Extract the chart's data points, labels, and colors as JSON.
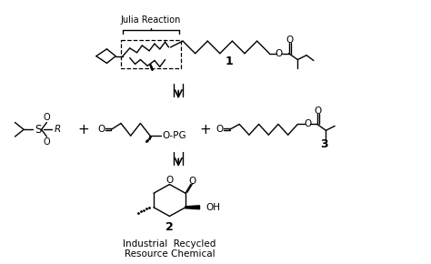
{
  "background_color": "#ffffff",
  "text_color": "#000000",
  "julia_reaction_label": "Julia Reaction",
  "compound1_label": "1",
  "compound2_label": "2",
  "compound3_label": "3",
  "label_industrial": "Industrial  Recycled\nResource Chemical",
  "label_OPG": "O-PG",
  "label_R": "R",
  "label_OH": "OH",
  "figsize": [
    4.74,
    2.9
  ],
  "dpi": 100
}
